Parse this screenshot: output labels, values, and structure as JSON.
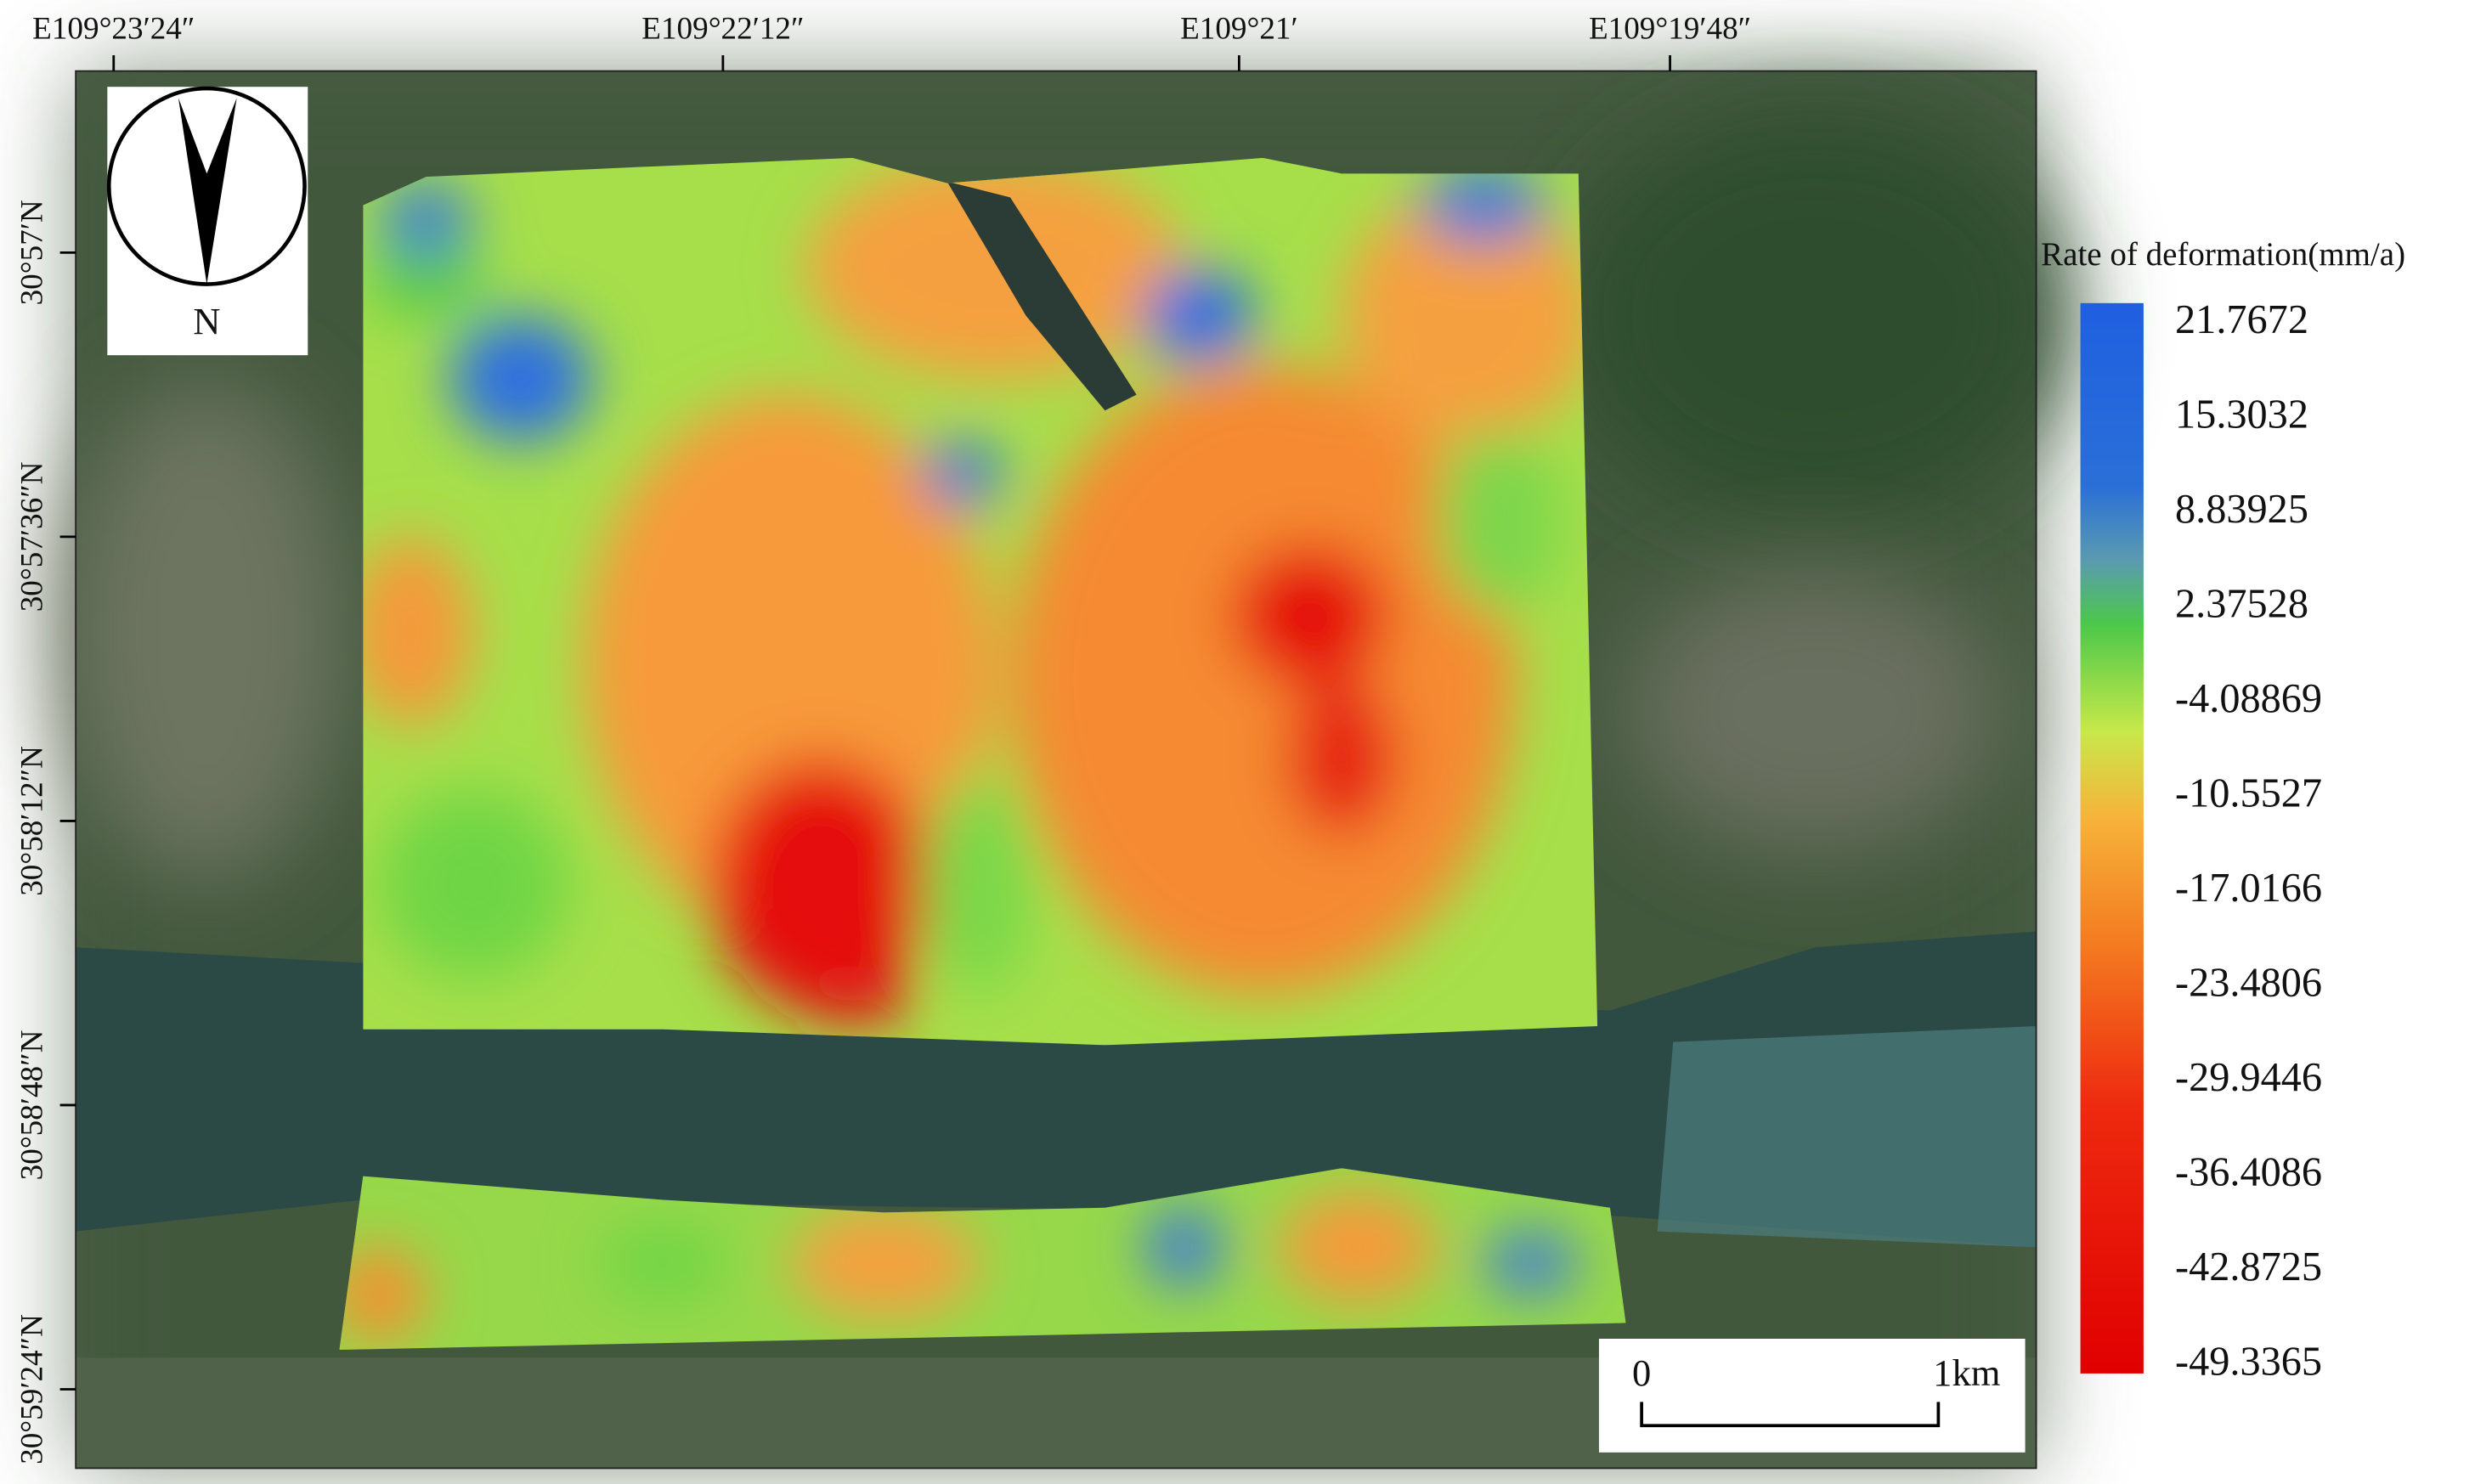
{
  "top_labels": [
    "E109°23′24″",
    "E109°22′12″",
    "E109°21′",
    "E109°19′48″"
  ],
  "left_labels": [
    "30°57′N",
    "30°57′36″N",
    "30°58′12″N",
    "30°58′48″N",
    "30°59′24″N"
  ],
  "north_label": "N",
  "legend": {
    "title": "Rate of deformation(mm/a)",
    "values": [
      "21.7672",
      "15.3032",
      "8.83925",
      "2.37528",
      "-4.08869",
      "-10.5527",
      "-17.0166",
      "-23.4806",
      "-29.9446",
      "-36.4086",
      "-42.8725",
      "-49.3365"
    ]
  },
  "scale_bar": {
    "start": "0",
    "end": "1km"
  }
}
